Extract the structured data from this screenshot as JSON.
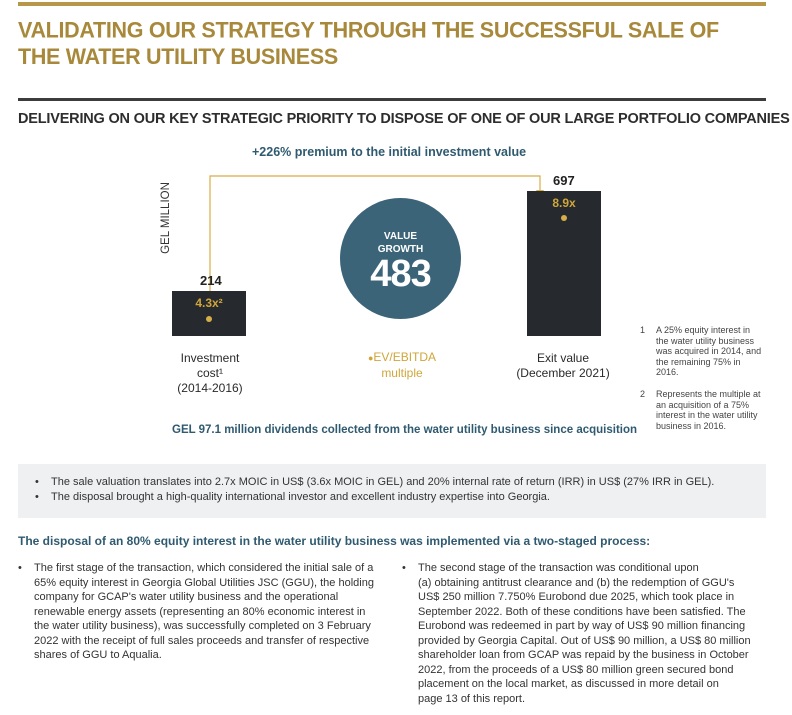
{
  "header": {
    "title": "VALIDATING OUR STRATEGY THROUGH THE SUCCESSFUL SALE OF THE WATER UTILITY BUSINESS",
    "subtitle": "DELIVERING ON OUR KEY STRATEGIC PRIORITY TO DISPOSE OF ONE OF OUR LARGE PORTFOLIO COMPANIES"
  },
  "chart_data": {
    "type": "bar",
    "ylabel": "GEL MILLION",
    "premium_label": "+226% premium to the initial investment value",
    "categories": [
      "Investment cost¹ (2014-2016)",
      "Exit value (December 2021)"
    ],
    "values": [
      214,
      697
    ],
    "value_labels": [
      "214",
      "697"
    ],
    "multiples": [
      "4.3x²",
      "8.9x"
    ],
    "captions": [
      [
        "Investment",
        "cost¹",
        "(2014-2016)"
      ],
      [
        "Exit value",
        "(December 2021)"
      ]
    ],
    "value_growth": {
      "label_line1": "VALUE",
      "label_line2": "GROWTH",
      "value": "483"
    },
    "multiple_legend": [
      "EV/EBITDA",
      "multiple"
    ],
    "colors": {
      "bar": "#262a2f",
      "circle": "#3c6478",
      "accent": "#d8ae48",
      "text_blue": "#2f5a70"
    },
    "dividends_note": "GEL 97.1 million dividends collected from the water utility business since acquisition"
  },
  "footnotes": [
    {
      "num": "1",
      "text": "A 25% equity interest in the water utility business was acquired in 2014, and the remaining 75% in 2016."
    },
    {
      "num": "2",
      "text": "Represents the multiple at an acquisition of a 75% interest in the water utility business in 2016."
    }
  ],
  "highlights": [
    "The sale valuation translates into 2.7x MOIC in US$ (3.6x MOIC in GEL) and 20% internal rate of return (IRR) in US$ (27% IRR in GEL).",
    "The disposal brought a high-quality international investor and excellent industry expertise into Georgia."
  ],
  "process": {
    "heading": "The disposal of an 80% equity interest in the water utility business was implemented via a two-staged process:",
    "left_lines": [
      "The first stage of the transaction, which considered the initial sale of a",
      "65% equity interest in Georgia Global Utilities JSC (GGU), the holding",
      "company for GCAP's water utility business and the operational",
      "renewable energy assets (representing an 80% economic interest in",
      "the water utility business), was successfully completed on 3 February",
      "2022 with the receipt of full sales proceeds and transfer of respective",
      "shares of GGU to Aqualia."
    ],
    "right_lines": [
      "The second stage of the transaction was conditional upon",
      "(a) obtaining antitrust clearance and (b) the redemption of GGU's",
      "US$ 250 million 7.750% Eurobond due 2025, which took place in",
      "September 2022. Both of these conditions have been satisfied. The",
      "Eurobond was redeemed in part by way of US$ 90 million financing",
      "provided by Georgia Capital. Out of US$ 90 million, a US$ 80 million",
      "shareholder loan from GCAP was repaid by the business in October",
      "2022, from the proceeds of a US$ 80 million green secured bond",
      "placement on the local market, as discussed in more detail on",
      "page 13 of this report."
    ]
  }
}
